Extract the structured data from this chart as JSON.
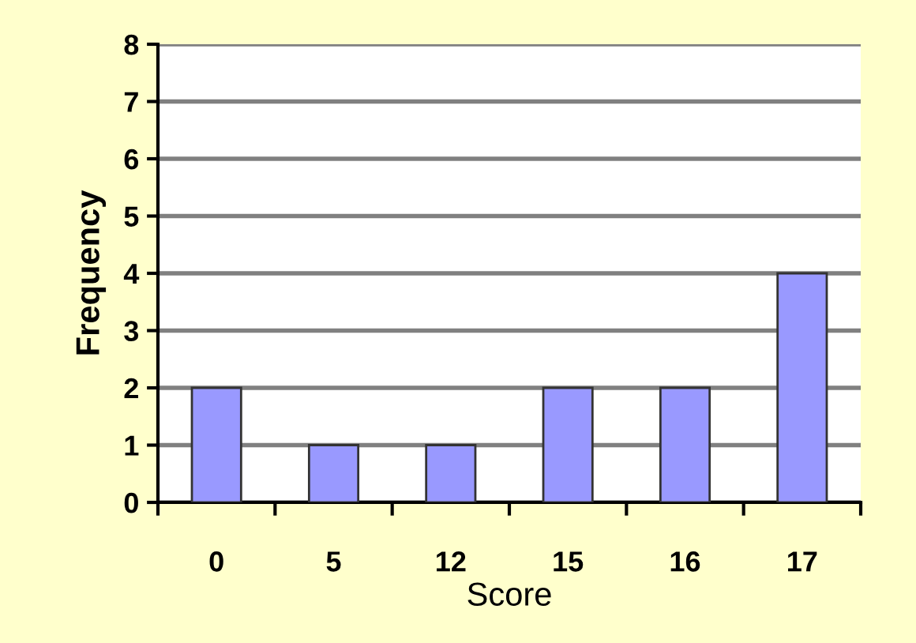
{
  "chart_data": {
    "type": "bar",
    "xlabel": "Score",
    "ylabel": "Frequency",
    "categories": [
      "0",
      "5",
      "12",
      "15",
      "16",
      "17"
    ],
    "values": [
      2,
      1,
      1,
      2,
      2,
      4
    ],
    "color": "#9999ff",
    "ylim": [
      0,
      8
    ],
    "yticks": [
      0,
      1,
      2,
      3,
      4,
      5,
      6,
      7,
      8
    ],
    "grid": "y",
    "legend": false
  }
}
